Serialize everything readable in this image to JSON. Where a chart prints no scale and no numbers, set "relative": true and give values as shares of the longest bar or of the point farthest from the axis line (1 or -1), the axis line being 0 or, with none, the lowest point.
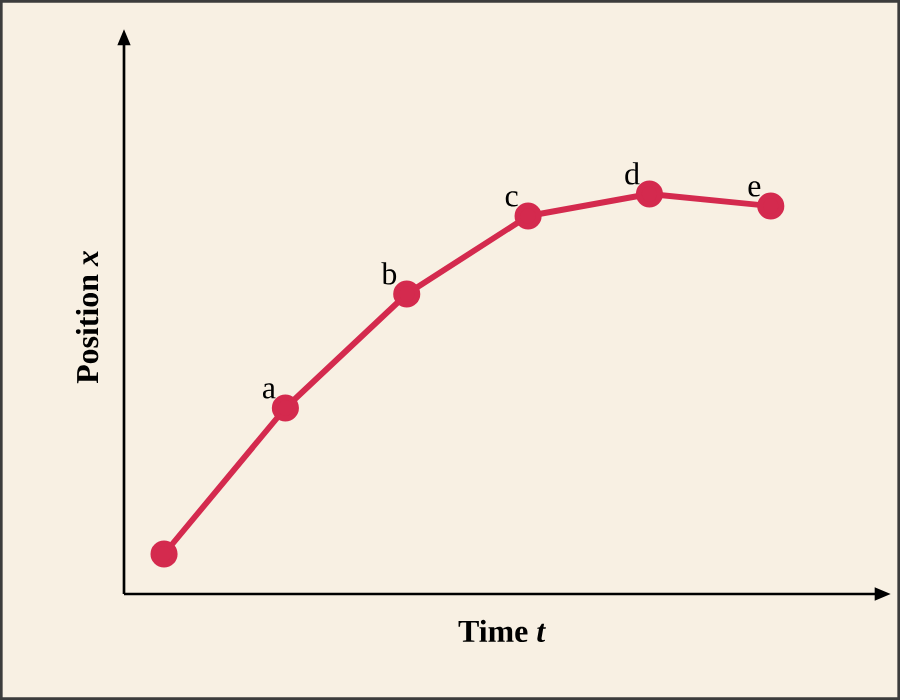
{
  "chart_data": {
    "type": "line",
    "relative": true,
    "xlabel": "Time *t*",
    "ylabel": "Position *x*",
    "color": "#d42a4e",
    "marker": "circle",
    "categories": [
      null,
      null,
      null,
      null,
      null,
      null
    ],
    "values": [
      0.1,
      0.465,
      0.75,
      0.945,
      1,
      0.97
    ],
    "annotations": [
      {
        "text": "a",
        "y": 0.465
      },
      {
        "text": "b",
        "y": 0.75
      },
      {
        "text": "c",
        "y": 0.945
      },
      {
        "text": "d",
        "y": 1
      },
      {
        "text": "e",
        "y": 0.97
      }
    ]
  }
}
